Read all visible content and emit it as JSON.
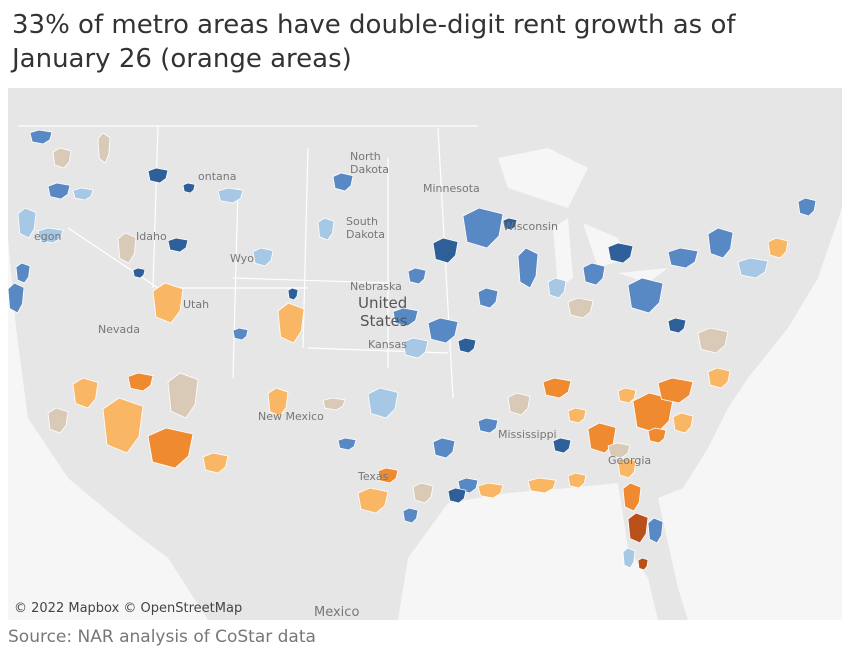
{
  "header": {
    "title": "33% of metro areas have double-digit rent growth as of January 26 (orange areas)"
  },
  "map": {
    "labels": [
      "North",
      "Dakota",
      "Minnesota",
      "ontana",
      "South",
      "Dakota",
      "egon",
      "Idaho",
      "Wyo",
      "Nebraska",
      "United",
      "States",
      "Nevada",
      "Utah",
      "Kansas",
      "Texas",
      "Mississippi",
      "Georgia",
      "New Mexico",
      "Wisconsin",
      "Mexico"
    ],
    "attribution": "© 2022 Mapbox © OpenStreetMap"
  },
  "footer": {
    "source": "Source: NAR analysis of CoStar data"
  }
}
